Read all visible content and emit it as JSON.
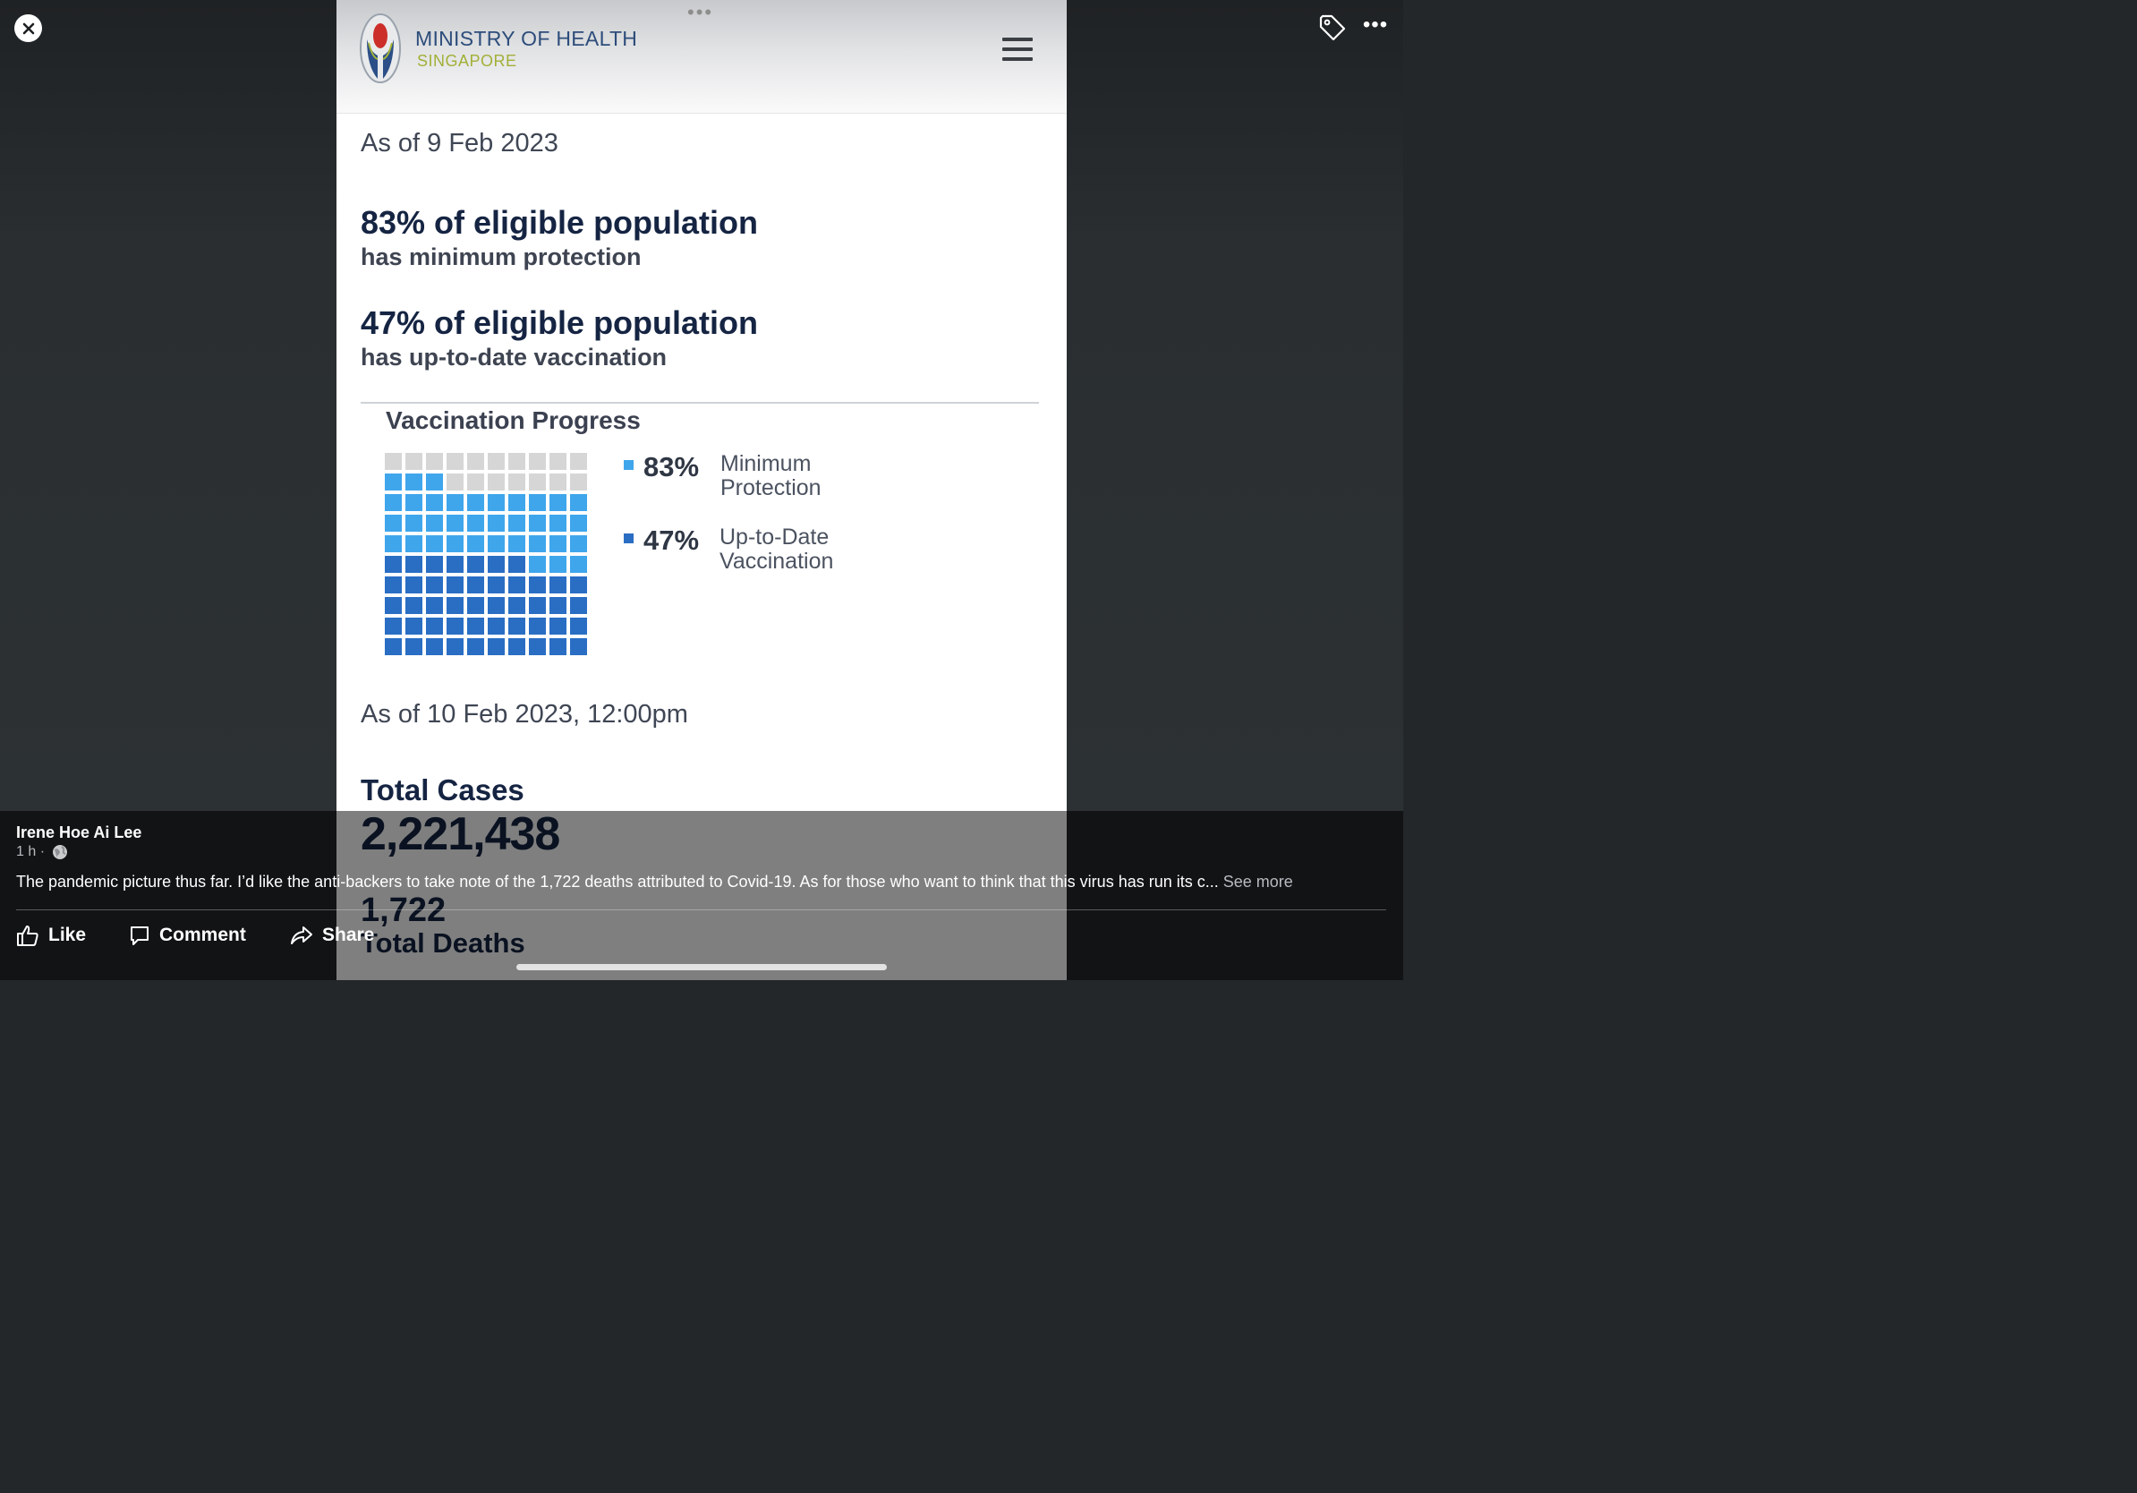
{
  "post": {
    "author": "Irene Hoe Ai Lee",
    "time": "1 h",
    "dot": "·",
    "caption": "The pandemic picture thus far. I’d like the anti-backers to take note of the 1,722 deaths attributed to Covid-19. As for those who want to think that this virus has run its c... ",
    "see_more": "See more"
  },
  "actions": {
    "like": "Like",
    "comment": "Comment",
    "share": "Share"
  },
  "viewer": {
    "close_icon": "close-icon",
    "tag_icon": "tag-icon",
    "more_icon": "more-icon",
    "more_glyph": "•••",
    "grip_glyph": "•••"
  },
  "photo": {
    "org_name": "MINISTRY OF HEALTH",
    "org_country": "SINGAPORE",
    "date1": "As of 9 Feb 2023",
    "stat1_headline": "83% of eligible population",
    "stat1_sub": "has minimum protection",
    "stat2_headline": "47% of eligible population",
    "stat2_sub": "has up-to-date vaccination",
    "progress_title": "Vaccination Progress",
    "date2": "As of 10 Feb 2023, 12:00pm",
    "total_cases_label": "Total Cases",
    "total_cases_value": "2,221,438",
    "deaths_value": "1,722",
    "total_deaths_label": "Total Deaths"
  },
  "colors": {
    "min_protection": "#3fa6ec",
    "up_to_date": "#2a6ec4",
    "empty": "#d6d6d6"
  },
  "chart_data": {
    "type": "waffle",
    "title": "Vaccination Progress",
    "grid": [
      10,
      10
    ],
    "series": [
      {
        "name": "Minimum Protection",
        "value": 83,
        "label": "83%",
        "color": "#3fa6ec"
      },
      {
        "name": "Up-to-Date Vaccination",
        "value": 47,
        "label": "47%",
        "color": "#2a6ec4"
      }
    ],
    "legend_lines": [
      [
        "Minimum",
        "Protection"
      ],
      [
        "Up-to-Date",
        "Vaccination"
      ]
    ]
  }
}
